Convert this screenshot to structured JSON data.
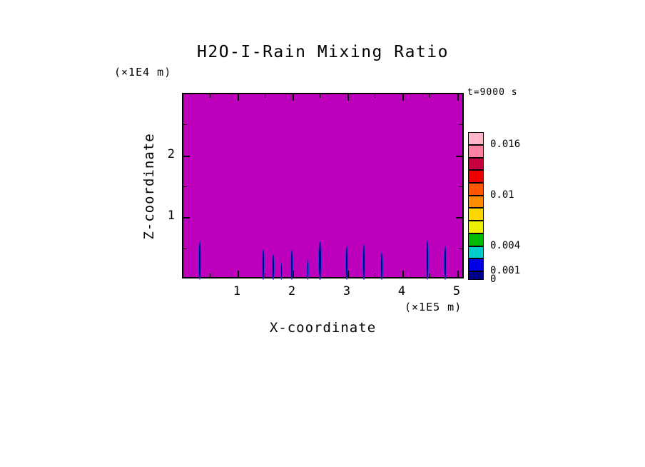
{
  "chart_data": {
    "type": "heatmap",
    "subtype": "filled-contour-cross-section",
    "title": "H2O-I-Rain Mixing Ratio",
    "xlabel": "X-coordinate",
    "ylabel": "Z-coordinate",
    "x_units": "(×1E5 m)",
    "y_units": "(×1E4 m)",
    "time_label": "t=9000 s",
    "xlim": [
      0,
      5.13
    ],
    "ylim": [
      0,
      3.0
    ],
    "x_ticks": [
      1,
      2,
      3,
      4,
      5
    ],
    "y_ticks": [
      1,
      2
    ],
    "minor_tick_step_x": 0.5,
    "minor_tick_step_y": 0.5,
    "grid": false,
    "background_field_color": "#BC00BC",
    "field_background_value": 0,
    "rain_shafts": [
      {
        "x": 0.3,
        "w": 0.06,
        "h": 0.64
      },
      {
        "x": 1.45,
        "w": 0.05,
        "h": 0.5
      },
      {
        "x": 1.64,
        "w": 0.05,
        "h": 0.42
      },
      {
        "x": 1.78,
        "w": 0.04,
        "h": 0.28
      },
      {
        "x": 1.97,
        "w": 0.05,
        "h": 0.48
      },
      {
        "x": 2.27,
        "w": 0.04,
        "h": 0.33
      },
      {
        "x": 2.49,
        "w": 0.06,
        "h": 0.62
      },
      {
        "x": 2.97,
        "w": 0.05,
        "h": 0.55
      },
      {
        "x": 3.29,
        "w": 0.05,
        "h": 0.58
      },
      {
        "x": 3.61,
        "w": 0.05,
        "h": 0.45
      },
      {
        "x": 4.44,
        "w": 0.06,
        "h": 0.65
      },
      {
        "x": 4.77,
        "w": 0.05,
        "h": 0.55
      }
    ],
    "colorbar": {
      "legend_position": "right",
      "levels": [
        0,
        0.001,
        0.0025,
        0.004,
        0.0055,
        0.007,
        0.0085,
        0.01,
        0.0115,
        0.013,
        0.0145,
        0.016,
        0.0175
      ],
      "colors": [
        "#00008B",
        "#0000E6",
        "#00CCCC",
        "#00BB00",
        "#EEEE00",
        "#FFD700",
        "#FF8C00",
        "#FF5500",
        "#EE0000",
        "#C80040",
        "#FF82A0",
        "#FFB6C8"
      ],
      "labels": [
        {
          "value": 0.016,
          "text": "0.016"
        },
        {
          "value": 0.01,
          "text": "0.01"
        },
        {
          "value": 0.004,
          "text": "0.004"
        },
        {
          "value": 0.001,
          "text": "0.001"
        },
        {
          "value": 0,
          "text": "0"
        }
      ]
    }
  }
}
